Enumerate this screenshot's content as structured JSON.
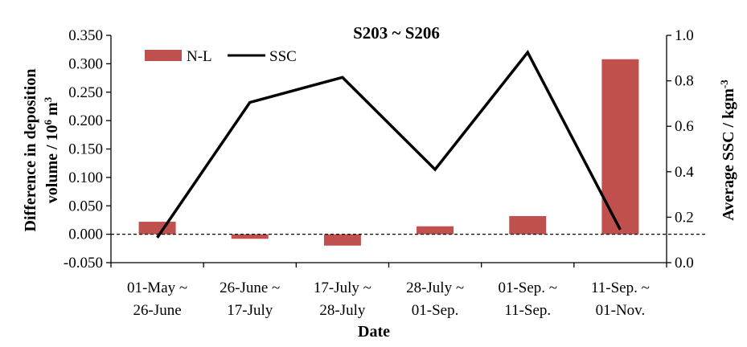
{
  "chart_data": {
    "type": "bar+line",
    "title": "S203 ~ S206",
    "xlabel": "Date",
    "ylabel_left": {
      "line1": "Difference  in deposition",
      "line2_prefix": "volume  / 10",
      "line2_sup": "6",
      "line2_mid": " m",
      "line2_sup2": "3"
    },
    "ylabel_right": {
      "prefix": "Average  SSC / kgm",
      "sup": "-3"
    },
    "categories": [
      [
        "01-May ~",
        "26-June"
      ],
      [
        "26-June ~",
        "17-July"
      ],
      [
        "17-July ~",
        "28-July"
      ],
      [
        "28-July ~",
        "01-Sep."
      ],
      [
        "01-Sep. ~",
        "11-Sep."
      ],
      [
        "11-Sep. ~",
        "01-Nov."
      ]
    ],
    "left_axis": {
      "min": -0.05,
      "max": 0.35,
      "ticks": [
        "0.350",
        "0.300",
        "0.250",
        "0.200",
        "0.150",
        "0.100",
        "0.050",
        "0.000",
        "-0.050"
      ],
      "tick_values": [
        0.35,
        0.3,
        0.25,
        0.2,
        0.15,
        0.1,
        0.05,
        0.0,
        -0.05
      ]
    },
    "right_axis": {
      "min": 0.0,
      "max": 1.0,
      "ticks": [
        "1.0",
        "0.8",
        "0.6",
        "0.4",
        "0.2",
        "0.0"
      ],
      "tick_values": [
        1.0,
        0.8,
        0.6,
        0.4,
        0.2,
        0.0
      ]
    },
    "series": [
      {
        "name": "N-L",
        "type": "bar",
        "axis": "left",
        "color": "#c0504d",
        "values": [
          0.022,
          -0.008,
          -0.02,
          0.014,
          0.032,
          0.308
        ]
      },
      {
        "name": "SSC",
        "type": "line",
        "axis": "right",
        "color": "#000000",
        "values": [
          0.11,
          0.705,
          0.815,
          0.41,
          0.925,
          0.145
        ]
      }
    ],
    "reference_line": {
      "axis": "left",
      "value": 0.0,
      "style": "dashed"
    },
    "legend_position": "top-left",
    "grid": false
  }
}
